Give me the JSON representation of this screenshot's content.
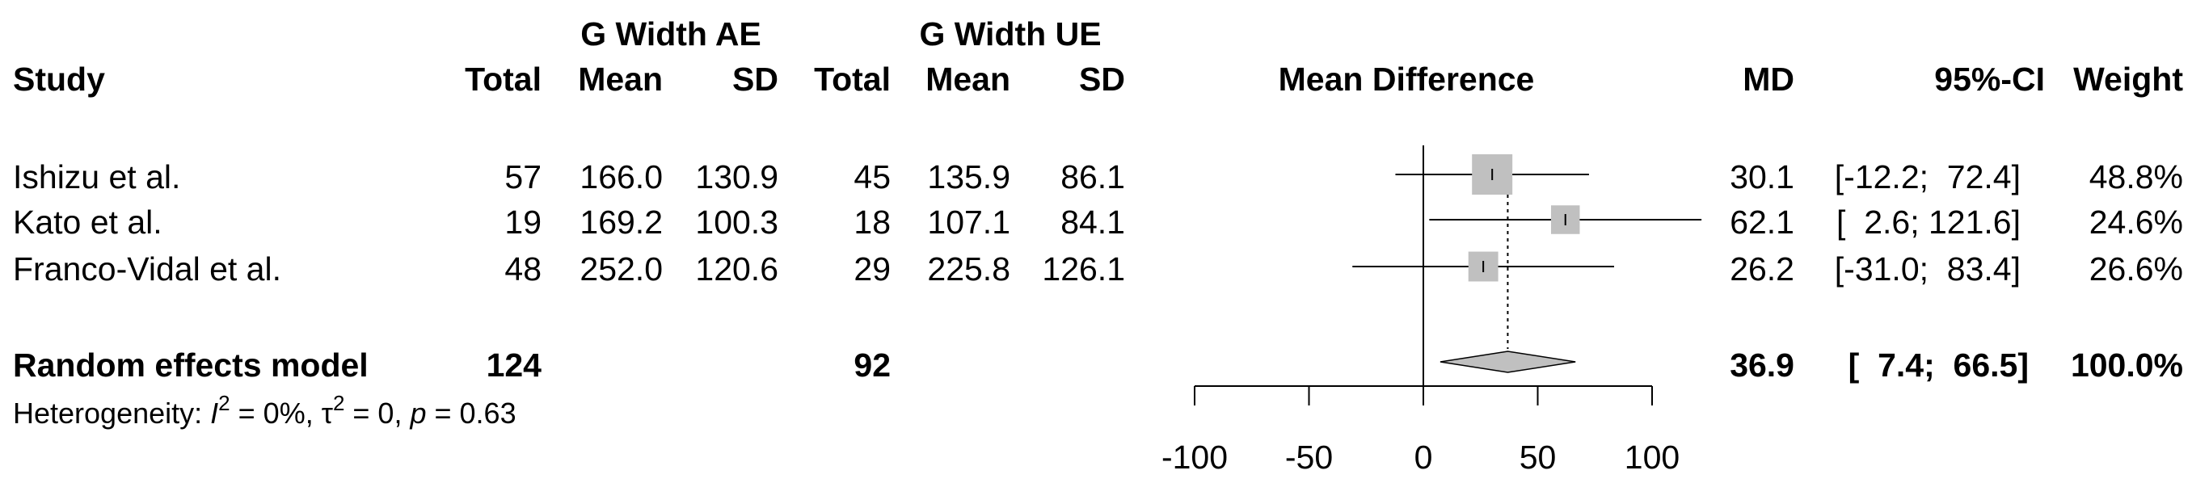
{
  "header": {
    "group_ae": "G Width AE",
    "group_ue": "G Width UE",
    "study": "Study",
    "total": "Total",
    "mean": "Mean",
    "sd": "SD",
    "mean_difference": "Mean Difference",
    "md": "MD",
    "ci": "95%-CI",
    "weight": "Weight"
  },
  "studies": [
    {
      "name": "Ishizu et al.",
      "ae_total": "57",
      "ae_mean": "166.0",
      "ae_sd": "130.9",
      "ue_total": "45",
      "ue_mean": "135.9",
      "ue_sd": "86.1",
      "md": "30.1",
      "ci": "[-12.2;  72.4]",
      "weight": "48.8%"
    },
    {
      "name": "Kato et al.",
      "ae_total": "19",
      "ae_mean": "169.2",
      "ae_sd": "100.3",
      "ue_total": "18",
      "ue_mean": "107.1",
      "ue_sd": "84.1",
      "md": "62.1",
      "ci": "[  2.6; 121.6]",
      "weight": "24.6%"
    },
    {
      "name": "Franco-Vidal et al.",
      "ae_total": "48",
      "ae_mean": "252.0",
      "ae_sd": "120.6",
      "ue_total": "29",
      "ue_mean": "225.8",
      "ue_sd": "126.1",
      "md": "26.2",
      "ci": "[-31.0;  83.4]",
      "weight": "26.6%"
    }
  ],
  "overall": {
    "label": "Random effects model",
    "ae_total": "124",
    "ue_total": "92",
    "md": "36.9",
    "ci": "[  7.4;  66.5]",
    "weight": "100.0%"
  },
  "heterogeneity": {
    "prefix": "Heterogeneity: ",
    "i2_symbol": "I",
    "i2_sup": "2",
    "i2_value": " = 0%, ",
    "tau_symbol": "τ",
    "tau_sup": "2",
    "tau_value": " = 0, ",
    "p_symbol": "p",
    "p_value": " = 0.63"
  },
  "chart_data": {
    "type": "forest",
    "xlim": [
      -100,
      100
    ],
    "ticks": [
      -100,
      -50,
      0,
      50,
      100
    ],
    "tick_labels": [
      "-100",
      "-50",
      "0",
      "50",
      "100"
    ],
    "null_line": 0,
    "studies": [
      {
        "name": "Ishizu et al.",
        "md": 30.1,
        "lower": -12.2,
        "upper": 72.4,
        "weight": 48.8
      },
      {
        "name": "Kato et al.",
        "md": 62.1,
        "lower": 2.6,
        "upper": 121.6,
        "weight": 24.6
      },
      {
        "name": "Franco-Vidal et al.",
        "md": 26.2,
        "lower": -31.0,
        "upper": 83.4,
        "weight": 26.6
      }
    ],
    "overall": {
      "md": 36.9,
      "lower": 7.4,
      "upper": 66.5
    },
    "colors": {
      "box": "#c0c0c0",
      "diamond": "#c0c0c0",
      "line": "#000000"
    }
  }
}
